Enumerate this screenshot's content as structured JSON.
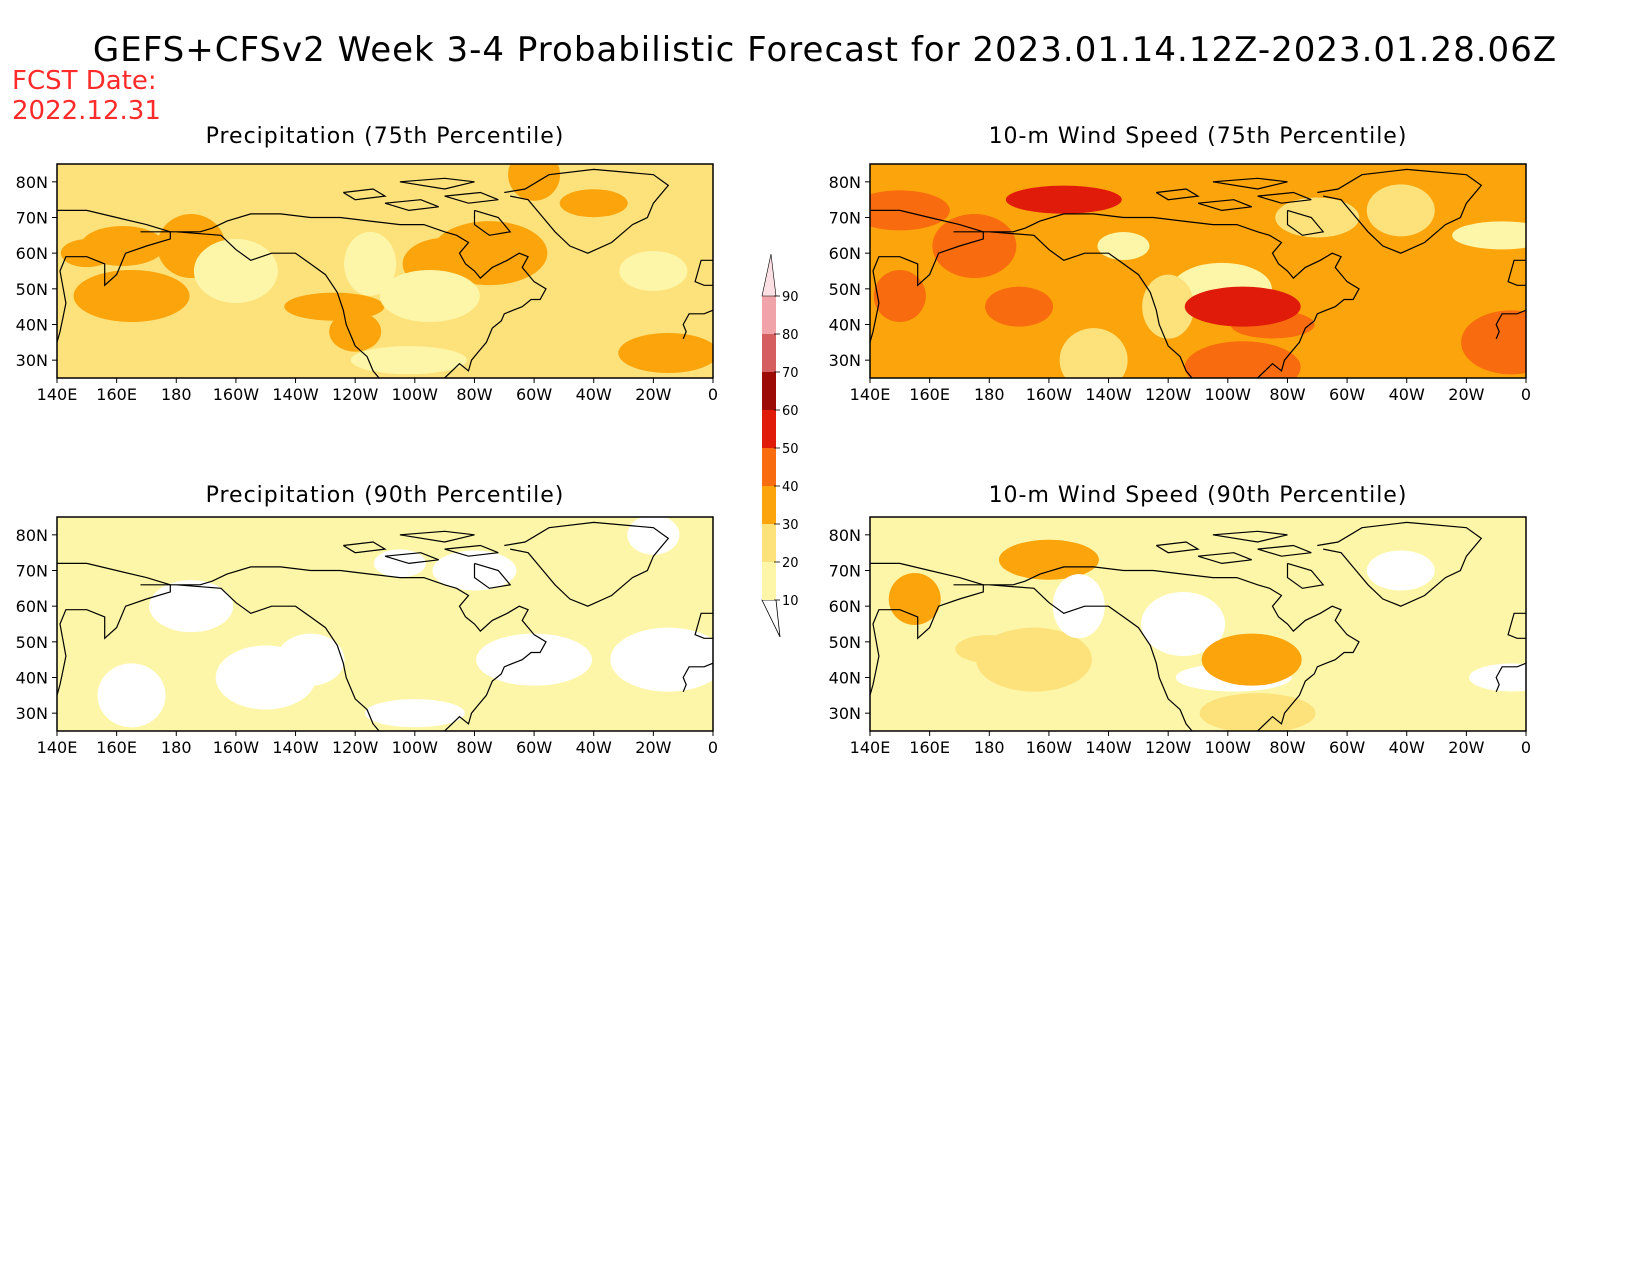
{
  "title": "GEFS+CFSv2 Week 3-4 Probabilistic Forecast for 2023.01.14.12Z-2023.01.28.06Z",
  "fcst_date_label": "FCST Date:",
  "fcst_date_value": "2022.12.31",
  "colors": {
    "white": "#ffffff",
    "c10": "#fdf6a9",
    "c20": "#fde27c",
    "c30": "#fca40b",
    "c40": "#f86b0e",
    "c50": "#e11b0a",
    "c60": "#9c0b06",
    "c70": "#d45e60",
    "c80": "#f0a4a9",
    "c90": "#fce0e3"
  },
  "colorbar": {
    "levels": [
      "10",
      "20",
      "30",
      "40",
      "50",
      "60",
      "70",
      "80",
      "90"
    ]
  },
  "panels": [
    {
      "id": "precip75",
      "title": "Precipitation (75th Percentile)",
      "base_level": "c20",
      "patches": [
        {
          "lon": 150,
          "lat": 60,
          "level": "c30"
        },
        {
          "lon": 162,
          "lat": 62,
          "level": "c30"
        },
        {
          "lon": 165,
          "lat": 48,
          "level": "c30"
        },
        {
          "lon": 185,
          "lat": 62,
          "level": "c30"
        },
        {
          "lon": 233,
          "lat": 45,
          "level": "c30"
        },
        {
          "lon": 240,
          "lat": 38,
          "level": "c30"
        },
        {
          "lon": 270,
          "lat": 57,
          "level": "c30"
        },
        {
          "lon": 285,
          "lat": 60,
          "level": "c30"
        },
        {
          "lon": 320,
          "lat": 74,
          "level": "c30"
        },
        {
          "lon": 345,
          "lat": 32,
          "level": "c30"
        },
        {
          "lon": 300,
          "lat": 82,
          "level": "c30"
        },
        {
          "lon": 200,
          "lat": 55,
          "level": "c10"
        },
        {
          "lon": 258,
          "lat": 30,
          "level": "c10"
        },
        {
          "lon": 340,
          "lat": 55,
          "level": "c10"
        },
        {
          "lon": 265,
          "lat": 48,
          "level": "c10"
        },
        {
          "lon": 245,
          "lat": 57,
          "level": "c10"
        }
      ]
    },
    {
      "id": "wind75",
      "title": "10-m Wind Speed (75th Percentile)",
      "base_level": "c30",
      "patches": [
        {
          "lon": 150,
          "lat": 72,
          "level": "c40"
        },
        {
          "lon": 150,
          "lat": 48,
          "level": "c40"
        },
        {
          "lon": 175,
          "lat": 62,
          "level": "c40"
        },
        {
          "lon": 205,
          "lat": 75,
          "level": "c50"
        },
        {
          "lon": 190,
          "lat": 45,
          "level": "c40"
        },
        {
          "lon": 258,
          "lat": 50,
          "level": "c10"
        },
        {
          "lon": 240,
          "lat": 45,
          "level": "c20"
        },
        {
          "lon": 275,
          "lat": 40,
          "level": "c40"
        },
        {
          "lon": 265,
          "lat": 45,
          "level": "c50"
        },
        {
          "lon": 318,
          "lat": 72,
          "level": "c20"
        },
        {
          "lon": 355,
          "lat": 35,
          "level": "c40"
        },
        {
          "lon": 225,
          "lat": 62,
          "level": "c10"
        },
        {
          "lon": 290,
          "lat": 70,
          "level": "c20"
        },
        {
          "lon": 265,
          "lat": 28,
          "level": "c40"
        },
        {
          "lon": 215,
          "lat": 30,
          "level": "c20"
        },
        {
          "lon": 352,
          "lat": 65,
          "level": "c10"
        }
      ]
    },
    {
      "id": "precip90",
      "title": "Precipitation (90th Percentile)",
      "base_level": "c10",
      "patches": [
        {
          "lon": 225,
          "lat": 45,
          "level": "white"
        },
        {
          "lon": 210,
          "lat": 40,
          "level": "white"
        },
        {
          "lon": 255,
          "lat": 72,
          "level": "white"
        },
        {
          "lon": 280,
          "lat": 70,
          "level": "white"
        },
        {
          "lon": 300,
          "lat": 45,
          "level": "white"
        },
        {
          "lon": 165,
          "lat": 35,
          "level": "white"
        },
        {
          "lon": 260,
          "lat": 30,
          "level": "white"
        },
        {
          "lon": 340,
          "lat": 80,
          "level": "white"
        },
        {
          "lon": 185,
          "lat": 60,
          "level": "white"
        },
        {
          "lon": 345,
          "lat": 45,
          "level": "white"
        }
      ]
    },
    {
      "id": "wind90",
      "title": "10-m Wind Speed (90th Percentile)",
      "base_level": "c10",
      "patches": [
        {
          "lon": 195,
          "lat": 45,
          "level": "c20"
        },
        {
          "lon": 180,
          "lat": 48,
          "level": "c20"
        },
        {
          "lon": 200,
          "lat": 73,
          "level": "c30"
        },
        {
          "lon": 155,
          "lat": 62,
          "level": "c30"
        },
        {
          "lon": 245,
          "lat": 55,
          "level": "white"
        },
        {
          "lon": 262,
          "lat": 40,
          "level": "white"
        },
        {
          "lon": 318,
          "lat": 70,
          "level": "white"
        },
        {
          "lon": 268,
          "lat": 45,
          "level": "c30"
        },
        {
          "lon": 210,
          "lat": 60,
          "level": "white"
        },
        {
          "lon": 355,
          "lat": 40,
          "level": "white"
        },
        {
          "lon": 270,
          "lat": 30,
          "level": "c20"
        }
      ]
    }
  ],
  "lat_ticks": [
    "80N",
    "70N",
    "60N",
    "50N",
    "40N",
    "30N"
  ],
  "lon_ticks": [
    "140E",
    "160E",
    "180",
    "160W",
    "140W",
    "120W",
    "100W",
    "80W",
    "60W",
    "40W",
    "20W",
    "0"
  ]
}
